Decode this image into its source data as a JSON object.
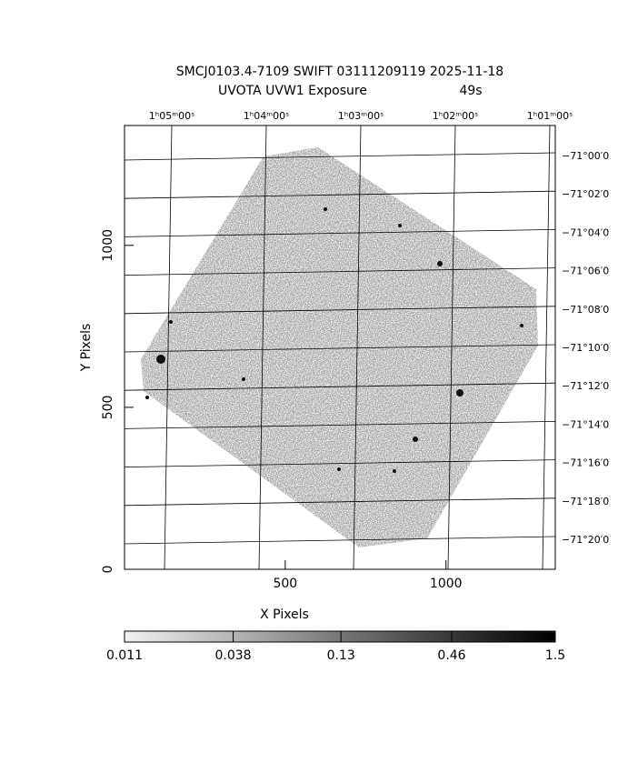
{
  "chart_data": {
    "type": "image",
    "title": "SMCJ0103.4-7109 SWIFT 03111209119 2025-11-18",
    "subtitle": "UVOTA UVW1  Exposure",
    "exposure": "49s",
    "x_label": "X Pixels",
    "y_label": "Y Pixels",
    "xlim": [
      0,
      1340
    ],
    "ylim": [
      0,
      1370
    ],
    "xticks": [
      500,
      1000
    ],
    "yticks": [
      0,
      500,
      1000
    ],
    "ra_ticks": [
      "1ʰ05ᵐ00ˢ",
      "1ʰ04ᵐ00ˢ",
      "1ʰ03ᵐ00ˢ",
      "1ʰ02ᵐ00ˢ",
      "1ʰ01ᵐ00ˢ"
    ],
    "dec_ticks": [
      "−71°00′0",
      "−71°02′0",
      "−71°04′0",
      "−71°06′0",
      "−71°08′0",
      "−71°10′0",
      "−71°12′0",
      "−71°14′0",
      "−71°16′0",
      "−71°18′0",
      "−71°20′0"
    ],
    "colorbar": {
      "scale": "log",
      "lim": [
        0.011,
        1.5
      ],
      "ticks": [
        0.011,
        0.038,
        0.13,
        0.46,
        1.5
      ]
    }
  }
}
